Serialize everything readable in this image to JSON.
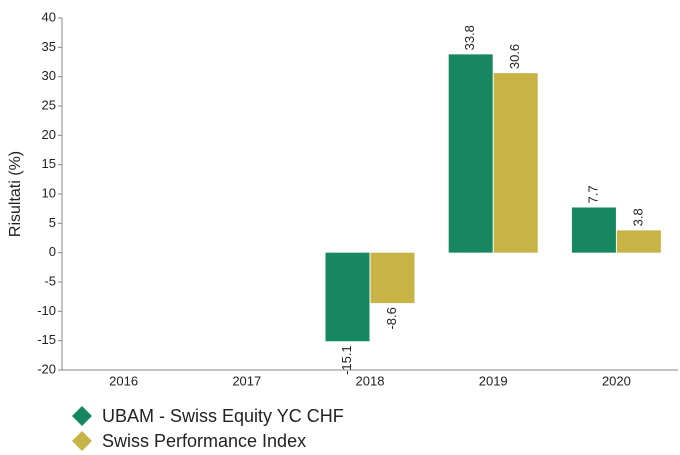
{
  "chart_data": {
    "type": "bar",
    "y_label": "Risultati (%)",
    "categories": [
      "2016",
      "2017",
      "2018",
      "2019",
      "2020"
    ],
    "series": [
      {
        "name": "UBAM - Swiss Equity YC CHF",
        "color": "#168760",
        "values": [
          null,
          null,
          -15.1,
          33.8,
          7.7
        ]
      },
      {
        "name": "Swiss Performance Index",
        "color": "#c8b446",
        "values": [
          null,
          null,
          -8.6,
          30.6,
          3.8
        ]
      }
    ],
    "ylim": [
      -20,
      40
    ],
    "yticks": [
      -20,
      -15,
      -10,
      -5,
      0,
      5,
      10,
      15,
      20,
      25,
      30,
      35,
      40
    ],
    "grid": false
  }
}
